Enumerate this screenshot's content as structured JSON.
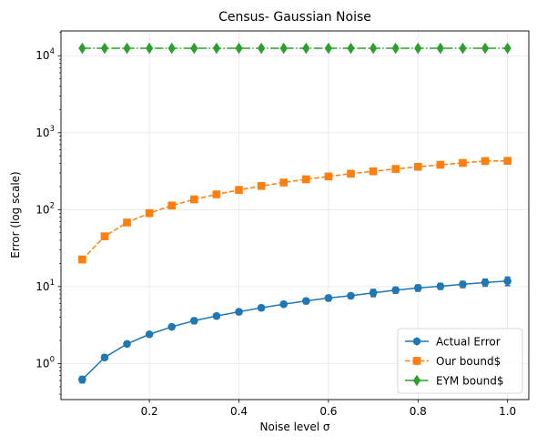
{
  "chart_data": {
    "type": "line",
    "title": "Census- Gaussian Noise",
    "xlabel": "Noise level σ",
    "ylabel": "Error  (log scale)",
    "yscale": "log",
    "xlim": [
      0.0025,
      1.0475
    ],
    "ylim": [
      0.34,
      21000
    ],
    "grid": true,
    "legend_position": "lower-right",
    "x_ticks": [
      {
        "value": 0.2,
        "label": "0.2"
      },
      {
        "value": 0.4,
        "label": "0.4"
      },
      {
        "value": 0.6,
        "label": "0.6"
      },
      {
        "value": 0.8,
        "label": "0.8"
      },
      {
        "value": 1.0,
        "label": "1.0"
      }
    ],
    "y_ticks": [
      {
        "value": 1,
        "base": "10",
        "exp": "0"
      },
      {
        "value": 10,
        "base": "10",
        "exp": "1"
      },
      {
        "value": 100,
        "base": "10",
        "exp": "2"
      },
      {
        "value": 1000,
        "base": "10",
        "exp": "3"
      },
      {
        "value": 10000,
        "base": "10",
        "exp": "4"
      }
    ],
    "x": [
      0.05,
      0.1,
      0.15,
      0.2,
      0.25,
      0.3,
      0.35,
      0.4,
      0.45,
      0.5,
      0.55,
      0.6,
      0.65,
      0.7,
      0.75,
      0.8,
      0.85,
      0.9,
      0.95,
      1.0
    ],
    "series": [
      {
        "name": "Actual Error",
        "color": "#1f77b4",
        "marker": "circle",
        "linestyle": "solid",
        "values": [
          0.62,
          1.2,
          1.8,
          2.4,
          3.0,
          3.6,
          4.15,
          4.7,
          5.3,
          5.9,
          6.5,
          7.1,
          7.6,
          8.3,
          9.0,
          9.6,
          10.1,
          10.7,
          11.3,
          11.8
        ],
        "errors": [
          0.06,
          0.08,
          0.1,
          0.15,
          0.2,
          0.3,
          0.3,
          0.35,
          0.4,
          0.4,
          0.5,
          0.6,
          0.6,
          0.9,
          0.8,
          0.9,
          0.9,
          1.0,
          1.2,
          1.5
        ]
      },
      {
        "name": "Our bound$",
        "color": "#ff7f0e",
        "marker": "square",
        "linestyle": "dashed",
        "values": [
          22.5,
          45,
          68,
          90,
          113,
          136,
          158,
          180,
          203,
          225,
          248,
          270,
          293,
          315,
          338,
          360,
          383,
          405,
          428,
          430
        ],
        "errors": [
          0,
          0,
          0,
          0,
          0,
          0,
          0,
          0,
          0,
          0,
          0,
          0,
          0,
          0,
          0,
          0,
          0,
          0,
          0,
          0
        ]
      },
      {
        "name": "EYM bound$",
        "color": "#2ca02c",
        "marker": "diamond",
        "linestyle": "dashdot",
        "values": [
          12500,
          12500,
          12500,
          12500,
          12500,
          12500,
          12500,
          12500,
          12500,
          12500,
          12500,
          12500,
          12500,
          12500,
          12500,
          12500,
          12500,
          12500,
          12500,
          12500
        ],
        "errors": [
          0,
          0,
          0,
          0,
          0,
          0,
          0,
          0,
          0,
          0,
          0,
          0,
          0,
          0,
          0,
          0,
          0,
          0,
          0,
          0
        ]
      }
    ]
  }
}
